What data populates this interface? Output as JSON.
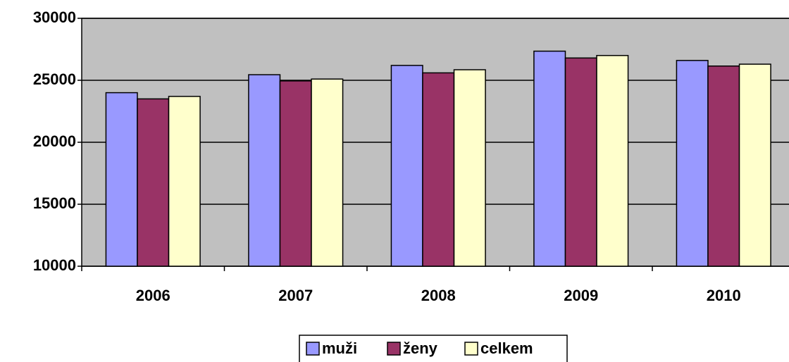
{
  "chart_data": {
    "type": "bar",
    "categories": [
      "2006",
      "2007",
      "2008",
      "2009",
      "2010"
    ],
    "series": [
      {
        "name": "muži",
        "color": "#9999ff",
        "values": [
          24000,
          25450,
          26200,
          27350,
          26600
        ]
      },
      {
        "name": "ženy",
        "color": "#993366",
        "values": [
          23500,
          24950,
          25600,
          26800,
          26150
        ]
      },
      {
        "name": "celkem",
        "color": "#ffffcc",
        "values": [
          23700,
          25100,
          25850,
          27000,
          26300
        ]
      }
    ],
    "ylim": [
      10000,
      30000
    ],
    "yticks": [
      10000,
      15000,
      20000,
      25000,
      30000
    ],
    "grid": true,
    "legend": "bottom",
    "plot_background": "#c0c0c0"
  }
}
